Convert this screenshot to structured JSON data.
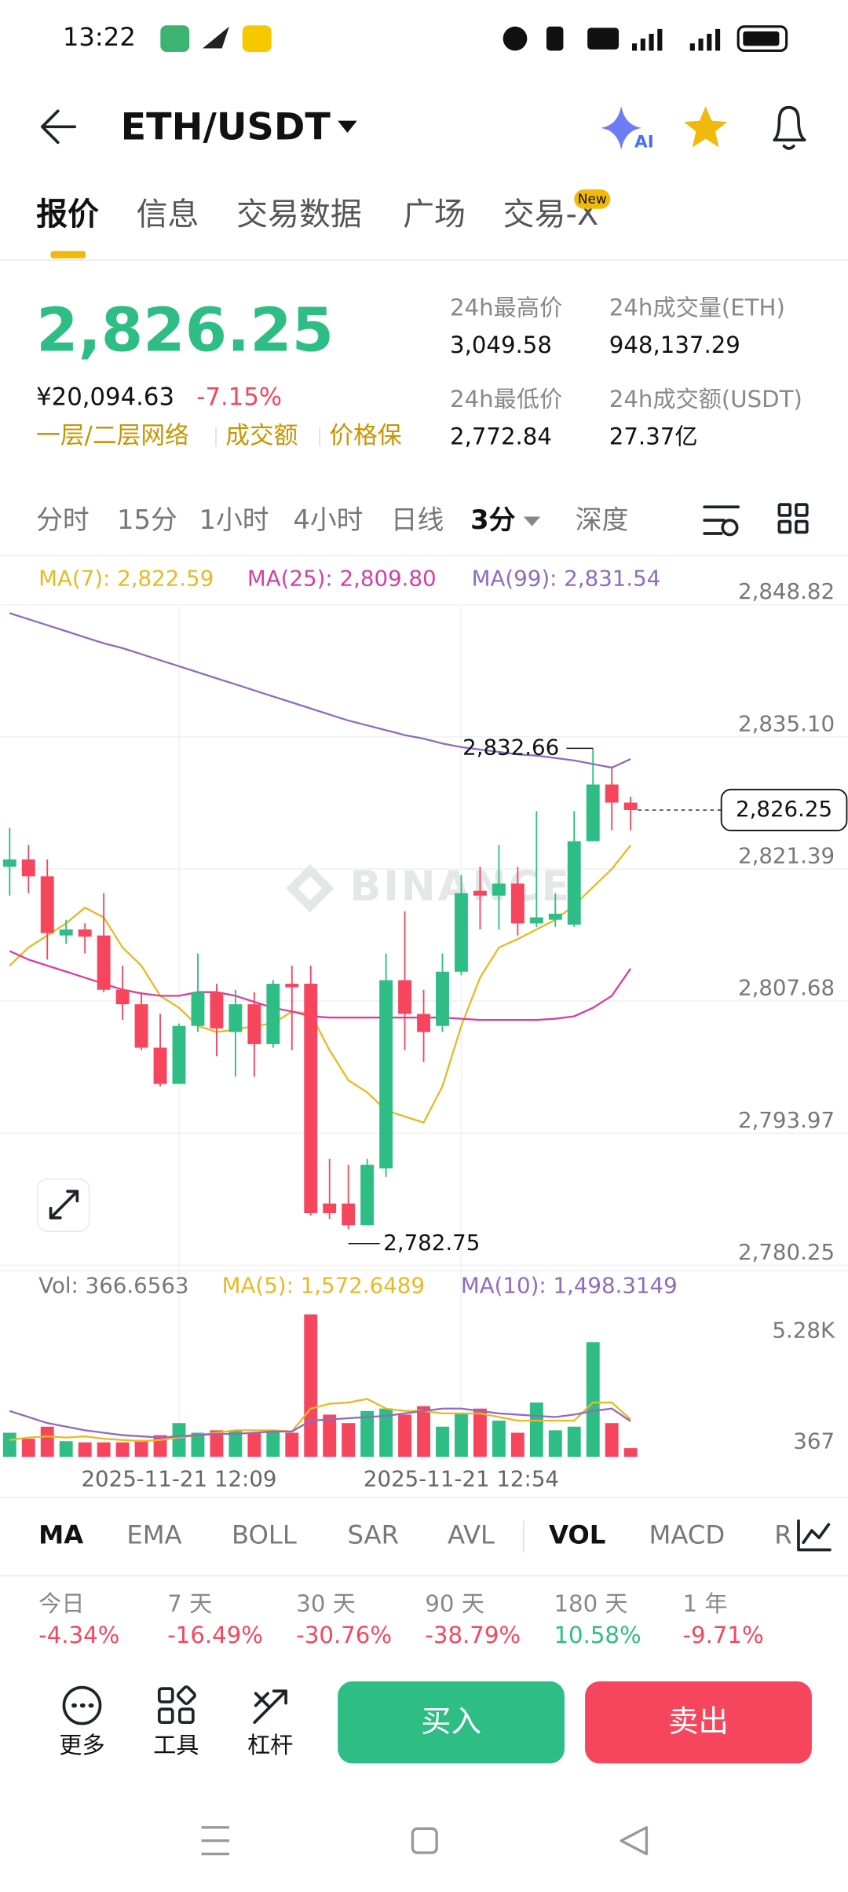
{
  "status_bar": {
    "time": "13:22"
  },
  "header": {
    "pair": "ETH/USDT"
  },
  "tabs": [
    "报价",
    "信息",
    "交易数据",
    "广场",
    "交易-X"
  ],
  "new_badge": "New",
  "price": {
    "last": "2,826.25",
    "cny": "¥20,094.63",
    "change": "-7.15%",
    "change_color": "#f6465d"
  },
  "tags": [
    "一层/二层网络",
    "成交额",
    "价格保"
  ],
  "stats": [
    {
      "label": "24h最高价",
      "value": "3,049.58"
    },
    {
      "label": "24h成交量(ETH)",
      "value": "948,137.29"
    },
    {
      "label": "24h最低价",
      "value": "2,772.84"
    },
    {
      "label": "24h成交额(USDT)",
      "value": "27.37亿"
    }
  ],
  "intervals": [
    "分时",
    "15分",
    "1小时",
    "4小时",
    "日线",
    "3分",
    "深度"
  ],
  "chart_data": {
    "type": "candlestick",
    "legend": [
      "MA(7): 2,822.59",
      "MA(25): 2,809.80",
      "MA(99): 2,831.54"
    ],
    "watermark": "BINANCE",
    "up_color": "#2ebd85",
    "down_color": "#f6465d",
    "categories": [
      null,
      null,
      null,
      null,
      null,
      null,
      null,
      null,
      null,
      "2025-11-21 12:09",
      null,
      null,
      null,
      null,
      null,
      null,
      null,
      null,
      null,
      null,
      null,
      null,
      null,
      null,
      "2025-11-21 12:54",
      null,
      null,
      null,
      null,
      null,
      null,
      null,
      null,
      null
    ],
    "open": [
      2820.37,
      2821.13,
      2819.37,
      2813.23,
      2813.86,
      2813.23,
      2807.59,
      2806.09,
      2801.58,
      2797.82,
      2803.84,
      2807.34,
      2803.21,
      2806.09,
      2801.95,
      2808.22,
      2808.22,
      2785.41,
      2785.41,
      2783.16,
      2789.05,
      2808.59,
      2805.09,
      2803.84,
      2809.47,
      2817.87,
      2817.37,
      2818.62,
      2814.48,
      2814.86,
      2814.36,
      2823.01,
      2828.9,
      2827.02
    ],
    "high": [
      2824.39,
      2822.63,
      2821.13,
      2814.86,
      2814.48,
      2817.62,
      2810.1,
      2807.34,
      2805.09,
      2804.09,
      2811.36,
      2808.22,
      2807.59,
      2807.34,
      2808.59,
      2810.1,
      2810.1,
      2790.05,
      2789.42,
      2790.05,
      2811.36,
      2815.74,
      2807.59,
      2811.36,
      2819.5,
      2820.37,
      2822.63,
      2820.37,
      2826.14,
      2817.62,
      2826.14,
      2832.66,
      2830.78,
      2827.64
    ],
    "low": [
      2817.37,
      2817.62,
      2810.73,
      2812.36,
      2811.36,
      2807.34,
      2804.46,
      2801.33,
      2797.57,
      2797.82,
      2803.21,
      2800.7,
      2798.57,
      2798.57,
      2801.58,
      2801.33,
      2784.16,
      2783.79,
      2782.75,
      2783.16,
      2788.17,
      2801.33,
      2800.08,
      2803.21,
      2809.1,
      2813.86,
      2813.86,
      2813.23,
      2814.11,
      2814.11,
      2814.11,
      2823.01,
      2824.14,
      2824.14
    ],
    "close": [
      2821.13,
      2819.37,
      2813.48,
      2813.86,
      2813.11,
      2807.59,
      2806.09,
      2801.58,
      2797.82,
      2803.84,
      2807.34,
      2803.58,
      2806.09,
      2801.95,
      2808.22,
      2807.85,
      2784.41,
      2784.41,
      2783.16,
      2789.42,
      2808.59,
      2805.09,
      2803.21,
      2809.47,
      2817.62,
      2817.37,
      2818.62,
      2814.48,
      2815.11,
      2815.49,
      2823.01,
      2828.9,
      2827.02,
      2826.25
    ],
    "series": [
      {
        "name": "MA(7)",
        "color": "#e8b923",
        "values": [
          2810.1,
          2811.98,
          2813.23,
          2814.49,
          2816.12,
          2815.11,
          2811.98,
          2810.1,
          2806.97,
          2805.72,
          2803.84,
          2803.21,
          2803.46,
          2803.84,
          2804.09,
          2805.34,
          2805.09,
          2801.33,
          2798.2,
          2796.95,
          2795.07,
          2794.44,
          2793.81,
          2797.57,
          2803.84,
          2808.85,
          2811.98,
          2812.86,
          2813.86,
          2814.86,
          2816.37,
          2818.25,
          2820.13,
          2822.59
        ]
      },
      {
        "name": "MA(25)",
        "color": "#d63ea7",
        "values": [
          2811.61,
          2810.73,
          2810.1,
          2809.48,
          2808.85,
          2808.22,
          2807.6,
          2807.22,
          2806.97,
          2806.97,
          2807.35,
          2807.35,
          2806.97,
          2806.34,
          2805.72,
          2805.34,
          2804.84,
          2804.71,
          2804.71,
          2804.71,
          2804.71,
          2804.71,
          2804.71,
          2804.71,
          2804.59,
          2804.46,
          2804.46,
          2804.46,
          2804.46,
          2804.59,
          2804.84,
          2805.72,
          2806.97,
          2809.8
        ]
      },
      {
        "name": "MA(99)",
        "color": "#8e6bbf",
        "values": [
          2846.69,
          2846.06,
          2845.44,
          2844.81,
          2844.18,
          2843.56,
          2843.06,
          2842.43,
          2841.8,
          2841.18,
          2840.55,
          2839.92,
          2839.3,
          2838.67,
          2838.04,
          2837.42,
          2836.79,
          2836.16,
          2835.54,
          2835.04,
          2834.54,
          2834.03,
          2833.66,
          2833.16,
          2832.78,
          2832.53,
          2832.28,
          2832.03,
          2831.9,
          2831.65,
          2831.4,
          2831.03,
          2830.65,
          2831.54
        ]
      }
    ],
    "ylim": [
      2778.78,
      2852.45
    ],
    "yticks": [
      {
        "value": 2848.82,
        "label": "2,848.82"
      },
      {
        "value": 2835.1,
        "label": "2,835.10"
      },
      {
        "value": 2821.39,
        "label": "2,821.39"
      },
      {
        "value": 2807.68,
        "label": "2,807.68"
      },
      {
        "value": 2793.97,
        "label": "2,793.97"
      },
      {
        "value": 2780.25,
        "label": "2,780.25"
      }
    ],
    "high_label": "2,832.66",
    "low_label": "2,782.75",
    "last_label": "2,826.25",
    "volume_legend": [
      "Vol: 366.6563",
      "MA(5): 1,572.6489",
      "MA(10): 1,498.3149"
    ],
    "volume": [
      1016,
      762,
      1270,
      660,
      610,
      610,
      610,
      711,
      914,
      1422,
      1016,
      1118,
      1118,
      1016,
      1118,
      1016,
      5994,
      1778,
      1422,
      1930,
      2032,
      1778,
      2134,
      1270,
      1829,
      2032,
      1524,
      1016,
      2286,
      1118,
      1270,
      4826,
      1422,
      366.6563
    ],
    "volume_series": [
      {
        "name": "MA(5)",
        "color": "#e8b923",
        "values": [
          711,
          813,
          864,
          813,
          864,
          762,
          711,
          660,
          711,
          813,
          914,
          1016,
          1118,
          1118,
          1118,
          1067,
          2032,
          2235,
          2286,
          2438,
          2032,
          1930,
          1930,
          1829,
          1829,
          1829,
          1676,
          1524,
          1524,
          1524,
          1524,
          2286,
          2286,
          1572.6489
        ]
      },
      {
        "name": "MA(10)",
        "color": "#8e6bbf",
        "values": [
          1930,
          1676,
          1422,
          1270,
          1118,
          1016,
          914,
          864,
          813,
          864,
          914,
          965,
          965,
          1016,
          1067,
          1067,
          1524,
          1575,
          1626,
          1676,
          1727,
          1829,
          1930,
          2032,
          2032,
          1930,
          1829,
          1778,
          1727,
          1676,
          1778,
          1930,
          2032,
          1498.3149
        ]
      }
    ],
    "volume_ylim": [
      0,
      7720
    ],
    "volume_yticks": [
      {
        "value": 5280,
        "label": "5.28K"
      },
      367
    ]
  },
  "indicators": [
    "MA",
    "EMA",
    "BOLL",
    "SAR",
    "AVL",
    "VOL",
    "MACD",
    "R"
  ],
  "performance": [
    {
      "label": "今日",
      "value": "-4.34%",
      "color": "#f6465d"
    },
    {
      "label": "7 天",
      "value": "-16.49%",
      "color": "#f6465d"
    },
    {
      "label": "30 天",
      "value": "-30.76%",
      "color": "#f6465d"
    },
    {
      "label": "90 天",
      "value": "-38.79%",
      "color": "#f6465d"
    },
    {
      "label": "180 天",
      "value": "10.58%",
      "color": "#2ebd85"
    },
    {
      "label": "1 年",
      "value": "-9.71%",
      "color": "#f6465d"
    }
  ],
  "tools": [
    "更多",
    "工具",
    "杠杆"
  ],
  "buy": "买入",
  "sell": "卖出"
}
